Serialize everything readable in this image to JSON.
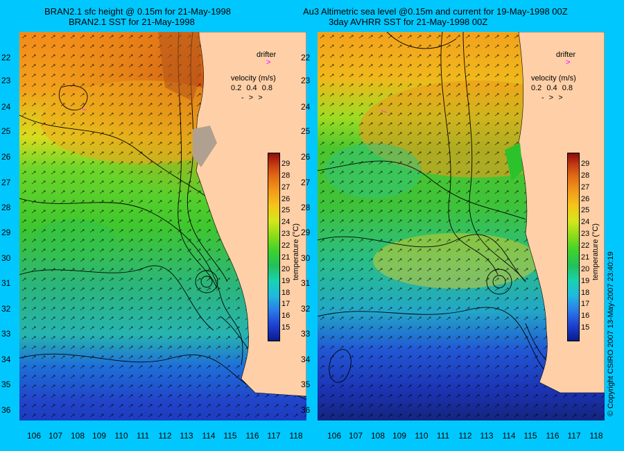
{
  "left_panel": {
    "title_line1": "BRAN2.1 sfc height @ 0.15m for 21-May-1998",
    "title_line2": "BRAN2.1 SST for 21-May-1998"
  },
  "right_panel": {
    "title_line1": "Au3 Altimetric sea level  @0.15m and current for 19-May-1998 00Z",
    "title_line2": "3day AVHRR SST for 21-May-1998 00Z"
  },
  "legend": {
    "drifter": "drifter",
    "velocity_title": "velocity (m/s)",
    "velocity_values": "0.2 0.4 0.8",
    "arrows": "- > >"
  },
  "colorbar": {
    "label": "temperature (°C)",
    "ticks": [
      "29",
      "28",
      "27",
      "26",
      "25",
      "24",
      "23",
      "22",
      "21",
      "20",
      "19",
      "18",
      "17",
      "16",
      "15"
    ],
    "min": 14,
    "max": 30
  },
  "lat_labels": [
    "22",
    "23",
    "24",
    "25",
    "26",
    "27",
    "28",
    "29",
    "30",
    "31",
    "32",
    "33",
    "34",
    "35",
    "36"
  ],
  "lon_labels": [
    "106",
    "107",
    "108",
    "109",
    "110",
    "111",
    "112",
    "113",
    "114",
    "115",
    "116",
    "117",
    "118"
  ],
  "copyright": "© Copyright CSIRO 2007   13-May-2007 23:40:19",
  "colors": {
    "background": "#00c8ff",
    "land": "#ffd0a8",
    "drifter": "#ff33ff"
  }
}
